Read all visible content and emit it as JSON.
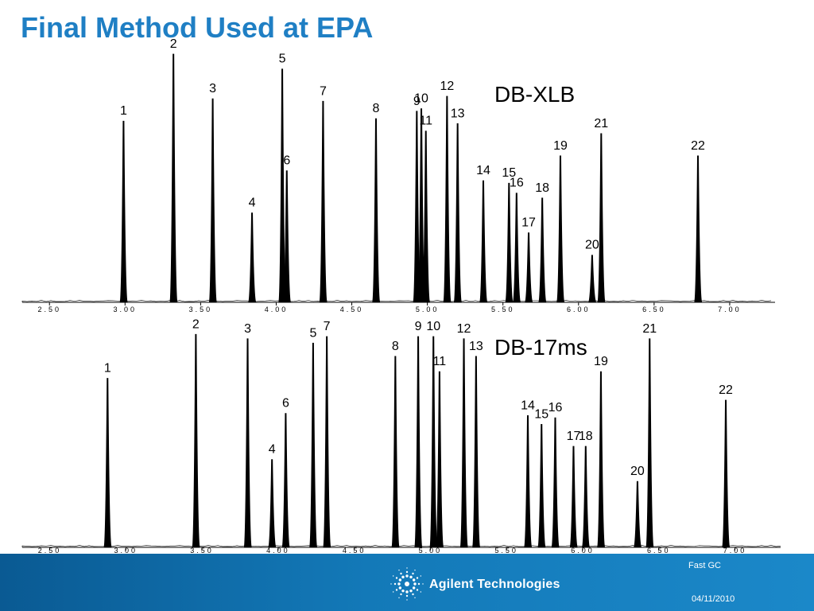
{
  "slide": {
    "title": "Final Method Used at EPA"
  },
  "chart_data": [
    {
      "type": "line",
      "title": "DB-XLB",
      "x_ticks": [
        "2.50",
        "3.00",
        "3.50",
        "4.00",
        "4.50",
        "5.00",
        "5.50",
        "6.00",
        "6.50",
        "7.00"
      ],
      "xlim": [
        2.32,
        7.3
      ],
      "peaks": [
        {
          "label": "1",
          "rt": 2.99,
          "height": 0.73
        },
        {
          "label": "2",
          "rt": 3.32,
          "height": 1.0
        },
        {
          "label": "3",
          "rt": 3.58,
          "height": 0.82
        },
        {
          "label": "4",
          "rt": 3.84,
          "height": 0.36
        },
        {
          "label": "5",
          "rt": 4.04,
          "height": 0.94
        },
        {
          "label": "6",
          "rt": 4.07,
          "height": 0.53
        },
        {
          "label": "7",
          "rt": 4.31,
          "height": 0.81
        },
        {
          "label": "8",
          "rt": 4.66,
          "height": 0.74
        },
        {
          "label": "9",
          "rt": 4.93,
          "height": 0.77
        },
        {
          "label": "10",
          "rt": 4.96,
          "height": 0.78
        },
        {
          "label": "11",
          "rt": 4.99,
          "height": 0.69
        },
        {
          "label": "12",
          "rt": 5.13,
          "height": 0.83
        },
        {
          "label": "13",
          "rt": 5.2,
          "height": 0.72
        },
        {
          "label": "14",
          "rt": 5.37,
          "height": 0.49
        },
        {
          "label": "15",
          "rt": 5.54,
          "height": 0.48
        },
        {
          "label": "16",
          "rt": 5.59,
          "height": 0.44
        },
        {
          "label": "17",
          "rt": 5.67,
          "height": 0.28
        },
        {
          "label": "18",
          "rt": 5.76,
          "height": 0.42
        },
        {
          "label": "19",
          "rt": 5.88,
          "height": 0.59
        },
        {
          "label": "20",
          "rt": 6.09,
          "height": 0.19
        },
        {
          "label": "21",
          "rt": 6.15,
          "height": 0.68
        },
        {
          "label": "22",
          "rt": 6.79,
          "height": 0.59
        }
      ]
    },
    {
      "type": "line",
      "title": "DB-17ms",
      "x_ticks": [
        "2.50",
        "3.00",
        "3.50",
        "4.00",
        "4.50",
        "5.00",
        "5.50",
        "6.00",
        "6.50",
        "7.00"
      ],
      "xlim": [
        2.32,
        7.3
      ],
      "peaks": [
        {
          "label": "1",
          "rt": 2.88,
          "height": 0.77
        },
        {
          "label": "2",
          "rt": 3.46,
          "height": 0.97
        },
        {
          "label": "3",
          "rt": 3.8,
          "height": 0.95
        },
        {
          "label": "4",
          "rt": 3.96,
          "height": 0.4
        },
        {
          "label": "5",
          "rt": 4.23,
          "height": 0.93
        },
        {
          "label": "6",
          "rt": 4.05,
          "height": 0.61
        },
        {
          "label": "7",
          "rt": 4.32,
          "height": 0.96
        },
        {
          "label": "8",
          "rt": 4.77,
          "height": 0.87
        },
        {
          "label": "9",
          "rt": 4.92,
          "height": 0.96
        },
        {
          "label": "10",
          "rt": 5.02,
          "height": 0.96
        },
        {
          "label": "11",
          "rt": 5.06,
          "height": 0.8
        },
        {
          "label": "12",
          "rt": 5.22,
          "height": 0.95
        },
        {
          "label": "13",
          "rt": 5.3,
          "height": 0.87
        },
        {
          "label": "14",
          "rt": 5.64,
          "height": 0.6
        },
        {
          "label": "15",
          "rt": 5.73,
          "height": 0.56
        },
        {
          "label": "16",
          "rt": 5.82,
          "height": 0.59
        },
        {
          "label": "17",
          "rt": 5.94,
          "height": 0.46
        },
        {
          "label": "18",
          "rt": 6.02,
          "height": 0.46
        },
        {
          "label": "19",
          "rt": 6.12,
          "height": 0.8
        },
        {
          "label": "20",
          "rt": 6.36,
          "height": 0.3
        },
        {
          "label": "21",
          "rt": 6.44,
          "height": 0.95
        },
        {
          "label": "22",
          "rt": 6.94,
          "height": 0.67
        }
      ]
    }
  ],
  "footer": {
    "brand": "Agilent Technologies",
    "topic": "Fast GC",
    "date": "04/11/2010",
    "logo_icon": "agilent-spark-icon"
  },
  "colors": {
    "title": "#1f7fc4",
    "footer": "#1379b8",
    "trace": "#000000"
  }
}
